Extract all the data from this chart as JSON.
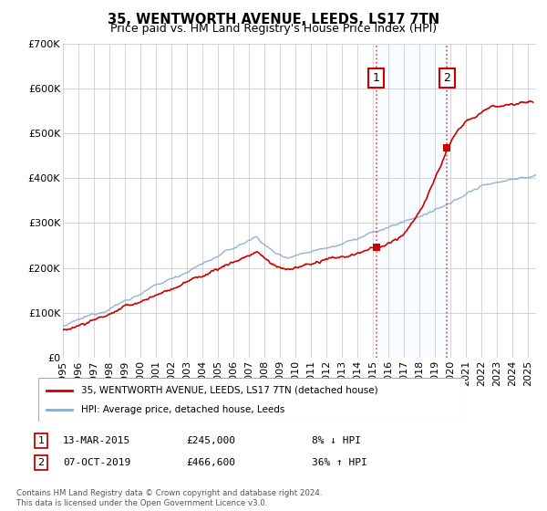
{
  "title": "35, WENTWORTH AVENUE, LEEDS, LS17 7TN",
  "subtitle": "Price paid vs. HM Land Registry's House Price Index (HPI)",
  "ylim": [
    0,
    700000
  ],
  "yticks": [
    0,
    100000,
    200000,
    300000,
    400000,
    500000,
    600000,
    700000
  ],
  "ytick_labels": [
    "£0",
    "£100K",
    "£200K",
    "£300K",
    "£400K",
    "£500K",
    "£600K",
    "£700K"
  ],
  "sale1_year": 2015.2,
  "sale1_price": 245000,
  "sale1_label": "1",
  "sale1_date": "13-MAR-2015",
  "sale1_amount": "£245,000",
  "sale1_hpi": "8% ↓ HPI",
  "sale2_year": 2019.77,
  "sale2_price": 466600,
  "sale2_label": "2",
  "sale2_date": "07-OCT-2019",
  "sale2_amount": "£466,600",
  "sale2_hpi": "36% ↑ HPI",
  "red_line_color": "#cc0000",
  "blue_line_color": "#88aacc",
  "shade_color": "#ddeeff",
  "legend_label1": "35, WENTWORTH AVENUE, LEEDS, LS17 7TN (detached house)",
  "legend_label2": "HPI: Average price, detached house, Leeds",
  "footer": "Contains HM Land Registry data © Crown copyright and database right 2024.\nThis data is licensed under the Open Government Licence v3.0.",
  "title_fontsize": 10.5,
  "subtitle_fontsize": 9,
  "axis_fontsize": 8,
  "xstart": 1995,
  "xend": 2025.5
}
